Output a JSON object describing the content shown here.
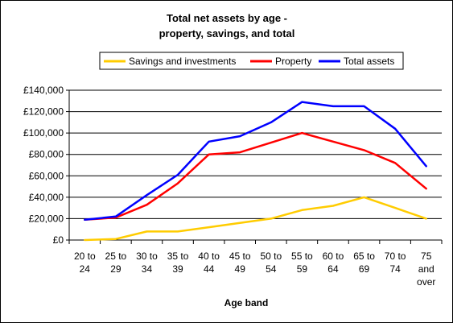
{
  "chart_data": {
    "type": "line",
    "title_lines": [
      "Total net assets by age -",
      "property, savings, and total"
    ],
    "xlabel": "Age band",
    "ylabel": "",
    "categories": [
      [
        "20 to",
        "24"
      ],
      [
        "25 to",
        "29"
      ],
      [
        "30 to",
        "34"
      ],
      [
        "35 to",
        "39"
      ],
      [
        "40 to",
        "44"
      ],
      [
        "45 to",
        "49"
      ],
      [
        "50 to",
        "54"
      ],
      [
        "55 to",
        "59"
      ],
      [
        "60 to",
        "64"
      ],
      [
        "65 to",
        "69"
      ],
      [
        "70 to",
        "74"
      ],
      [
        "75",
        "and",
        "over"
      ]
    ],
    "ylim": [
      0,
      140000
    ],
    "yticks": [
      0,
      20000,
      40000,
      60000,
      80000,
      100000,
      120000,
      140000
    ],
    "ytick_labels": [
      "£0",
      "£20,000",
      "£40,000",
      "£60,000",
      "£80,000",
      "£100,000",
      "£120,000",
      "£140,000"
    ],
    "grid": true,
    "legend_position": "top",
    "series": [
      {
        "name": "Savings and investments",
        "color": "#ffcc00",
        "values": [
          0,
          1000,
          8000,
          8000,
          12000,
          16000,
          20000,
          28000,
          32000,
          40000,
          30000,
          20000
        ]
      },
      {
        "name": "Property",
        "color": "#ff0000",
        "values": [
          19000,
          21000,
          33000,
          53000,
          80000,
          82000,
          91000,
          100000,
          92000,
          84000,
          72000,
          48000
        ]
      },
      {
        "name": "Total assets",
        "color": "#0000ff",
        "values": [
          19000,
          22000,
          42000,
          61000,
          92000,
          97000,
          110000,
          129000,
          125000,
          125000,
          104000,
          69000
        ]
      }
    ]
  }
}
